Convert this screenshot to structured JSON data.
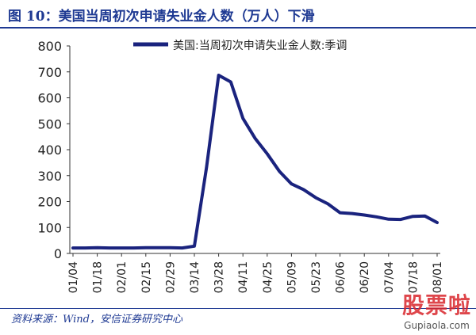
{
  "header": {
    "title": "图 10：美国当周初次申请失业金人数（万人）下滑"
  },
  "source": {
    "text": "资料来源：Wind，安信证券研究中心"
  },
  "watermark": {
    "main": "股票啦",
    "sub": "Gupiaola.com"
  },
  "colors": {
    "series": "#1a237e",
    "title": "#1f3a93",
    "axis": "#333333"
  },
  "chart_data": {
    "type": "line",
    "title": "",
    "xlabel": "",
    "ylabel": "",
    "ylim": [
      0,
      800
    ],
    "yticks": [
      0,
      100,
      200,
      300,
      400,
      500,
      600,
      700,
      800
    ],
    "grid": false,
    "legend_position": "top",
    "xtick_labels": [
      "01/04",
      "01/18",
      "02/01",
      "02/15",
      "02/29",
      "03/14",
      "03/28",
      "04/11",
      "04/25",
      "05/09",
      "05/23",
      "06/06",
      "06/20",
      "07/04",
      "07/18",
      "08/01"
    ],
    "x": [
      "01/04",
      "01/11",
      "01/18",
      "01/25",
      "02/01",
      "02/08",
      "02/15",
      "02/22",
      "02/29",
      "03/07",
      "03/14",
      "03/21",
      "03/28",
      "04/04",
      "04/11",
      "04/18",
      "04/25",
      "05/02",
      "05/09",
      "05/16",
      "05/23",
      "05/30",
      "06/06",
      "06/13",
      "06/20",
      "06/27",
      "07/04",
      "07/11",
      "07/18",
      "07/25",
      "08/01"
    ],
    "series": [
      {
        "name": "美国:当周初次申请失业金人数:季调",
        "values": [
          21,
          21,
          22,
          21,
          21,
          21,
          22,
          22,
          22,
          21,
          28,
          331,
          687,
          661,
          521,
          444,
          384,
          317,
          268,
          246,
          215,
          191,
          157,
          154,
          148,
          141,
          132,
          131,
          143,
          144,
          119
        ]
      }
    ]
  }
}
